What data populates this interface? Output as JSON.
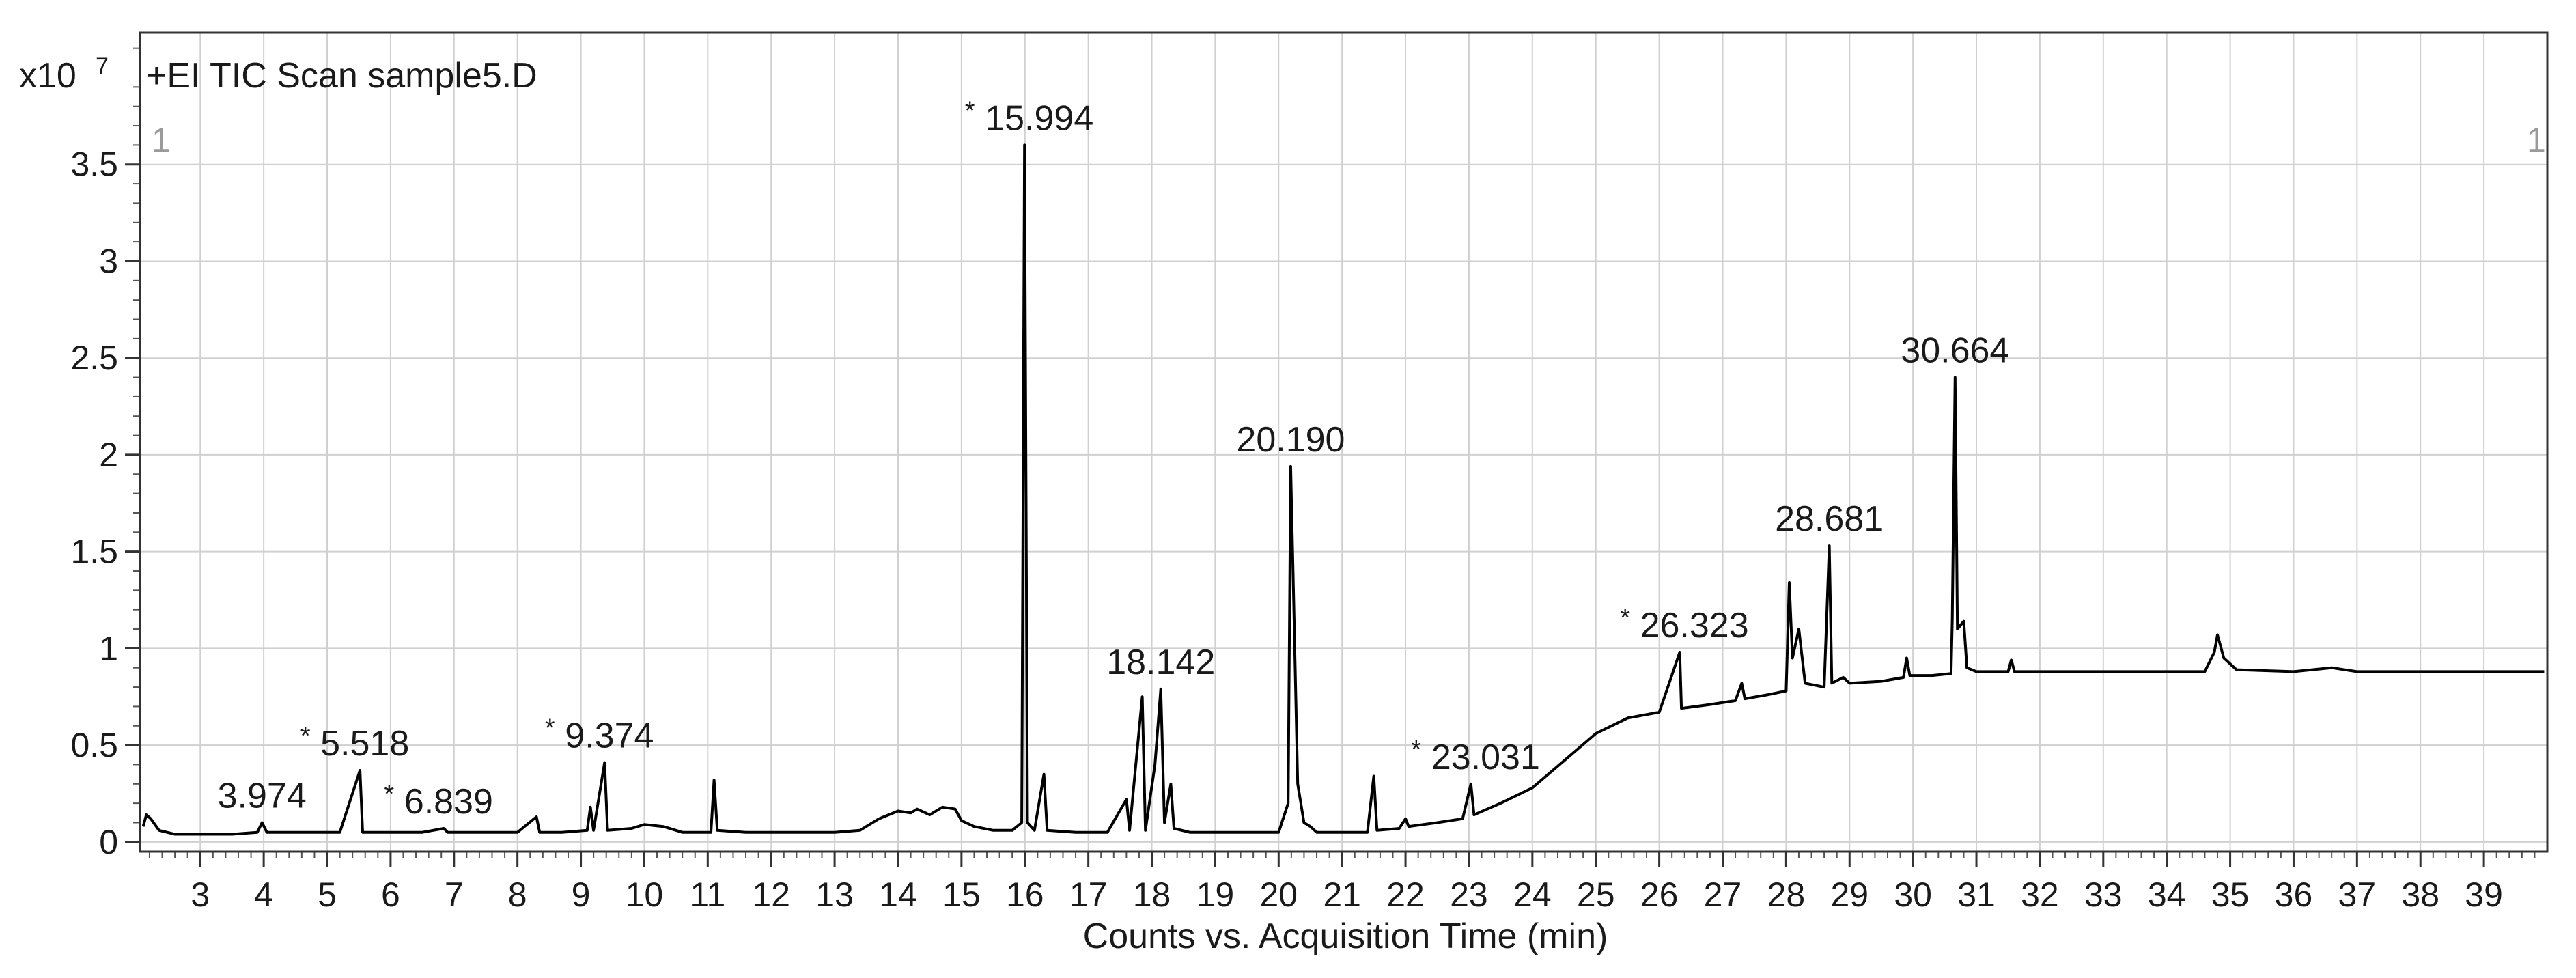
{
  "chart_data": {
    "type": "line",
    "title": "+EI TIC Scan sample5.D",
    "xlabel": "Counts vs. Acquisition Time (min)",
    "ylabel": "",
    "y_multiplier_label": "x10",
    "y_multiplier_exponent": "7",
    "corner_label_left": "1",
    "corner_label_right": "1",
    "xlim": [
      2.05,
      40.0
    ],
    "ylim": [
      -0.05,
      4.18
    ],
    "x_ticks": [
      3,
      4,
      5,
      6,
      7,
      8,
      9,
      10,
      11,
      12,
      13,
      14,
      15,
      16,
      17,
      18,
      19,
      20,
      21,
      22,
      23,
      24,
      25,
      26,
      27,
      28,
      29,
      30,
      31,
      32,
      33,
      34,
      35,
      36,
      37,
      38,
      39
    ],
    "y_ticks": [
      0,
      0.5,
      1,
      1.5,
      2,
      2.5,
      3,
      3.5
    ],
    "y_tick_labels": [
      "0",
      "0.5",
      "1",
      "1.5",
      "2",
      "2.5",
      "3",
      "3.5"
    ],
    "grid": true,
    "legend": "none",
    "line_color": "#000000",
    "grid_color": "#d0d0d0",
    "series": [
      {
        "values": [
          [
            2.1,
            0.08
          ],
          [
            2.15,
            0.14
          ],
          [
            2.22,
            0.12
          ],
          [
            2.35,
            0.06
          ],
          [
            2.6,
            0.04
          ],
          [
            3.0,
            0.04
          ],
          [
            3.5,
            0.04
          ],
          [
            3.9,
            0.05
          ],
          [
            3.974,
            0.1
          ],
          [
            4.05,
            0.05
          ],
          [
            4.5,
            0.05
          ],
          [
            4.9,
            0.05
          ],
          [
            5.2,
            0.05
          ],
          [
            5.518,
            0.37
          ],
          [
            5.56,
            0.05
          ],
          [
            6.0,
            0.05
          ],
          [
            6.5,
            0.05
          ],
          [
            6.839,
            0.07
          ],
          [
            6.9,
            0.05
          ],
          [
            7.5,
            0.05
          ],
          [
            8.0,
            0.05
          ],
          [
            8.3,
            0.13
          ],
          [
            8.35,
            0.05
          ],
          [
            8.7,
            0.05
          ],
          [
            9.1,
            0.06
          ],
          [
            9.15,
            0.18
          ],
          [
            9.2,
            0.06
          ],
          [
            9.374,
            0.41
          ],
          [
            9.42,
            0.06
          ],
          [
            9.8,
            0.07
          ],
          [
            10.0,
            0.09
          ],
          [
            10.3,
            0.08
          ],
          [
            10.6,
            0.05
          ],
          [
            11.05,
            0.05
          ],
          [
            11.1,
            0.32
          ],
          [
            11.15,
            0.06
          ],
          [
            11.6,
            0.05
          ],
          [
            12.0,
            0.05
          ],
          [
            12.5,
            0.05
          ],
          [
            13.0,
            0.05
          ],
          [
            13.4,
            0.06
          ],
          [
            13.7,
            0.12
          ],
          [
            14.0,
            0.16
          ],
          [
            14.2,
            0.15
          ],
          [
            14.3,
            0.17
          ],
          [
            14.5,
            0.14
          ],
          [
            14.7,
            0.18
          ],
          [
            14.9,
            0.17
          ],
          [
            15.0,
            0.11
          ],
          [
            15.2,
            0.08
          ],
          [
            15.5,
            0.06
          ],
          [
            15.8,
            0.06
          ],
          [
            15.95,
            0.1
          ],
          [
            15.994,
            3.6
          ],
          [
            16.04,
            0.1
          ],
          [
            16.15,
            0.06
          ],
          [
            16.3,
            0.35
          ],
          [
            16.35,
            0.06
          ],
          [
            16.8,
            0.05
          ],
          [
            17.3,
            0.05
          ],
          [
            17.6,
            0.22
          ],
          [
            17.65,
            0.06
          ],
          [
            17.85,
            0.75
          ],
          [
            17.9,
            0.06
          ],
          [
            18.05,
            0.4
          ],
          [
            18.142,
            0.79
          ],
          [
            18.2,
            0.1
          ],
          [
            18.3,
            0.3
          ],
          [
            18.35,
            0.07
          ],
          [
            18.6,
            0.05
          ],
          [
            19.0,
            0.05
          ],
          [
            19.5,
            0.05
          ],
          [
            20.0,
            0.05
          ],
          [
            20.15,
            0.2
          ],
          [
            20.19,
            1.94
          ],
          [
            20.24,
            1.2
          ],
          [
            20.3,
            0.3
          ],
          [
            20.4,
            0.1
          ],
          [
            20.5,
            0.08
          ],
          [
            20.6,
            0.05
          ],
          [
            21.0,
            0.05
          ],
          [
            21.4,
            0.05
          ],
          [
            21.5,
            0.34
          ],
          [
            21.55,
            0.06
          ],
          [
            21.9,
            0.07
          ],
          [
            22.0,
            0.12
          ],
          [
            22.05,
            0.08
          ],
          [
            22.5,
            0.1
          ],
          [
            22.9,
            0.12
          ],
          [
            23.031,
            0.3
          ],
          [
            23.08,
            0.14
          ],
          [
            23.5,
            0.2
          ],
          [
            24.0,
            0.28
          ],
          [
            24.5,
            0.42
          ],
          [
            25.0,
            0.56
          ],
          [
            25.5,
            0.64
          ],
          [
            26.0,
            0.67
          ],
          [
            26.323,
            0.98
          ],
          [
            26.35,
            0.69
          ],
          [
            26.8,
            0.71
          ],
          [
            27.2,
            0.73
          ],
          [
            27.3,
            0.82
          ],
          [
            27.35,
            0.74
          ],
          [
            27.7,
            0.76
          ],
          [
            28.0,
            0.78
          ],
          [
            28.05,
            1.34
          ],
          [
            28.1,
            0.95
          ],
          [
            28.2,
            1.1
          ],
          [
            28.3,
            0.82
          ],
          [
            28.6,
            0.8
          ],
          [
            28.681,
            1.53
          ],
          [
            28.72,
            0.82
          ],
          [
            28.9,
            0.85
          ],
          [
            29.0,
            0.82
          ],
          [
            29.5,
            0.83
          ],
          [
            29.85,
            0.85
          ],
          [
            29.9,
            0.95
          ],
          [
            29.95,
            0.86
          ],
          [
            30.3,
            0.86
          ],
          [
            30.6,
            0.87
          ],
          [
            30.62,
            1.15
          ],
          [
            30.664,
            2.4
          ],
          [
            30.7,
            1.1
          ],
          [
            30.8,
            1.14
          ],
          [
            30.85,
            0.9
          ],
          [
            31.0,
            0.88
          ],
          [
            31.5,
            0.88
          ],
          [
            31.55,
            0.94
          ],
          [
            31.6,
            0.88
          ],
          [
            32.0,
            0.88
          ],
          [
            33.0,
            0.88
          ],
          [
            34.0,
            0.88
          ],
          [
            34.6,
            0.88
          ],
          [
            34.75,
            0.98
          ],
          [
            34.8,
            1.07
          ],
          [
            34.9,
            0.95
          ],
          [
            35.1,
            0.89
          ],
          [
            36.0,
            0.88
          ],
          [
            36.6,
            0.9
          ],
          [
            37.0,
            0.88
          ],
          [
            38.0,
            0.88
          ],
          [
            39.0,
            0.88
          ],
          [
            39.95,
            0.88
          ]
        ]
      }
    ],
    "peak_labels": [
      {
        "text": "3.974",
        "x": 3.974,
        "y": 0.1,
        "star": false
      },
      {
        "text": "5.518",
        "x": 5.518,
        "y": 0.37,
        "star": true
      },
      {
        "text": "6.839",
        "x": 6.839,
        "y": 0.07,
        "star": true
      },
      {
        "text": "9.374",
        "x": 9.374,
        "y": 0.41,
        "star": true
      },
      {
        "text": "15.994",
        "x": 15.994,
        "y": 3.6,
        "star": true
      },
      {
        "text": "18.142",
        "x": 18.142,
        "y": 0.79,
        "star": false
      },
      {
        "text": "20.190",
        "x": 20.19,
        "y": 1.94,
        "star": false
      },
      {
        "text": "23.031",
        "x": 23.031,
        "y": 0.3,
        "star": true
      },
      {
        "text": "26.323",
        "x": 26.323,
        "y": 0.98,
        "star": true
      },
      {
        "text": "28.681",
        "x": 28.681,
        "y": 1.53,
        "star": false
      },
      {
        "text": "30.664",
        "x": 30.664,
        "y": 2.4,
        "star": false
      }
    ]
  }
}
